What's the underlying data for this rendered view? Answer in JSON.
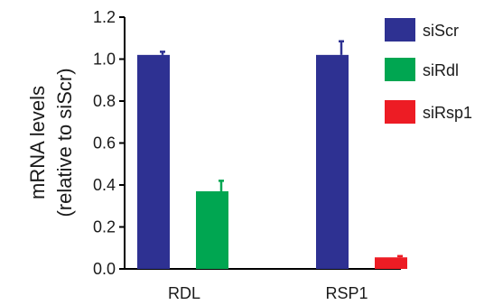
{
  "chart_data": {
    "type": "bar",
    "categories": [
      "RDL",
      "RSP1"
    ],
    "ylabel_lines": [
      "mRNA levels",
      "(relative to siScr)"
    ],
    "ylim": [
      0,
      1.2
    ],
    "yticks": [
      "0.0",
      "0.2",
      "0.4",
      "0.6",
      "0.8",
      "1.0",
      "1.2"
    ],
    "grid": false,
    "legend_position": "top-right",
    "series": [
      {
        "name": "siScr",
        "color": "#2e3192",
        "values": [
          1.02,
          1.02
        ],
        "errors": [
          0.015,
          0.065
        ]
      },
      {
        "name": "siRdl",
        "color": "#00a651",
        "values": [
          0.37,
          null
        ],
        "errors": [
          0.05,
          null
        ]
      },
      {
        "name": "siRsp1",
        "color": "#ed1c24",
        "values": [
          null,
          0.055
        ],
        "errors": [
          null,
          0.006
        ]
      }
    ]
  }
}
